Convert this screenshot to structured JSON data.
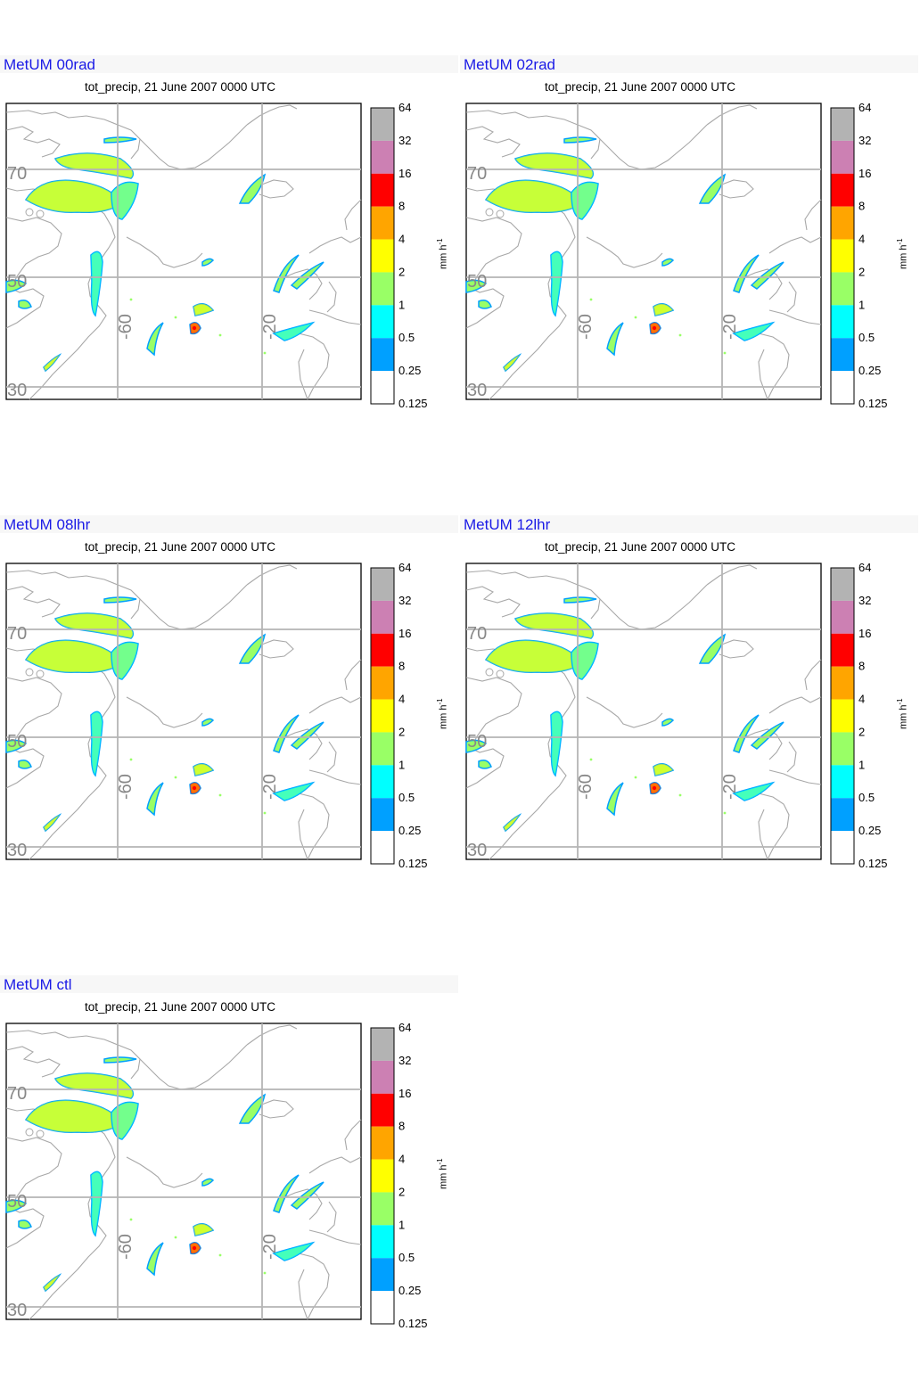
{
  "subtitle": "tot_precip, 21 June 2007 0000 UTC",
  "units_label": "mm h",
  "units_exponent": "-1",
  "lat_labels": [
    "70",
    "50",
    "30"
  ],
  "lon_labels": [
    "-60",
    "-20"
  ],
  "colorbar": {
    "levels": [
      "64",
      "32",
      "16",
      "8",
      "4",
      "2",
      "1",
      "0.5",
      "0.25",
      "0.125"
    ],
    "colors": [
      "#b3b3b3",
      "#cc80b3",
      "#ff0000",
      "#ffa500",
      "#ffff00",
      "#99ff66",
      "#00ffff",
      "#00a0ff",
      "#ffffff"
    ]
  },
  "colors": {
    "title": "#1a1ae6",
    "coast": "#a8a8a8",
    "grid": "#b5b5b5"
  },
  "panels": [
    {
      "title": "MetUM 00rad"
    },
    {
      "title": "MetUM 02rad"
    },
    {
      "title": "MetUM 08lhr"
    },
    {
      "title": "MetUM 12lhr"
    },
    {
      "title": "MetUM ctl"
    }
  ]
}
